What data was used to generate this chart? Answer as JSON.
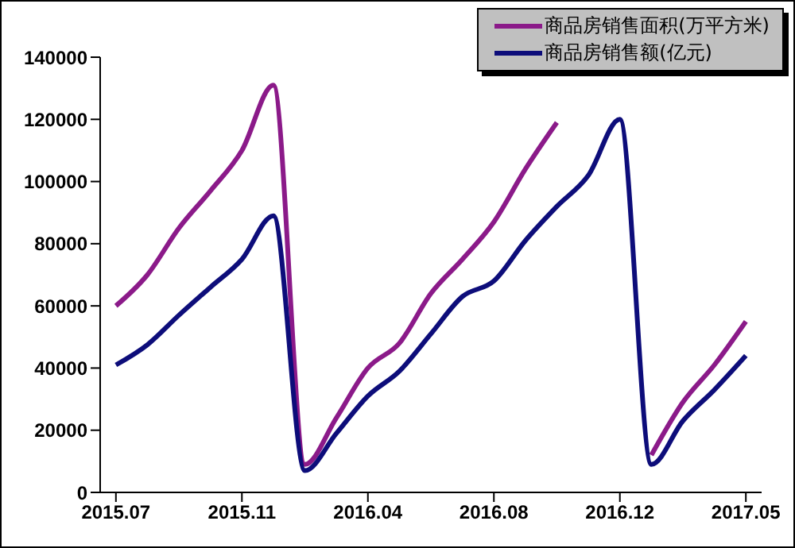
{
  "chart_data": {
    "type": "line",
    "categories": [
      "2015.07",
      null,
      null,
      null,
      "2015.11",
      null,
      null,
      null,
      "2016.04",
      null,
      null,
      null,
      "2016.08",
      null,
      null,
      null,
      "2016.12",
      null,
      null,
      null,
      "2017.05"
    ],
    "series": [
      {
        "name": "商品房销售面积(万平方米)",
        "color": "#8b1a89",
        "values": [
          60000,
          70000,
          85000,
          97000,
          110000,
          131000,
          9000,
          24000,
          40000,
          48000,
          64000,
          75000,
          87000,
          104000,
          119000,
          null,
          null,
          12000,
          29000,
          41000,
          55000
        ]
      },
      {
        "name": "商品房销售额(亿元)",
        "color": "#0d0d7a",
        "values": [
          41000,
          47500,
          57000,
          66000,
          75000,
          89000,
          7000,
          19000,
          31000,
          39000,
          51000,
          63000,
          68000,
          81000,
          92000,
          102000,
          120000,
          9000,
          23000,
          33000,
          44000
        ]
      }
    ],
    "ylim": [
      0,
      140000
    ],
    "yticks": [
      0,
      20000,
      40000,
      60000,
      80000,
      100000,
      120000,
      140000
    ],
    "legend": "top right",
    "marker": "none",
    "line_style": "solid"
  }
}
